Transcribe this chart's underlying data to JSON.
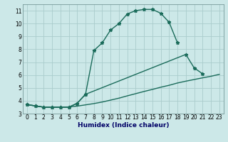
{
  "xlabel": "Humidex (Indice chaleur)",
  "bg_color": "#cce8e8",
  "grid_color": "#aacccc",
  "line_color": "#1a6b5a",
  "xlim": [
    -0.5,
    23.5
  ],
  "ylim": [
    3,
    11.5
  ],
  "xticks": [
    0,
    1,
    2,
    3,
    4,
    5,
    6,
    7,
    8,
    9,
    10,
    11,
    12,
    13,
    14,
    15,
    16,
    17,
    18,
    19,
    20,
    21,
    22,
    23
  ],
  "yticks": [
    3,
    4,
    5,
    6,
    7,
    8,
    9,
    10,
    11
  ],
  "line1_x": [
    0,
    1,
    2,
    3,
    4,
    5,
    6,
    7,
    8,
    9,
    10,
    11,
    12,
    13,
    14,
    15,
    16,
    17,
    18
  ],
  "line1_y": [
    3.7,
    3.6,
    3.5,
    3.5,
    3.5,
    3.5,
    3.8,
    4.5,
    7.9,
    8.5,
    9.5,
    10.0,
    10.75,
    11.0,
    11.1,
    11.1,
    10.8,
    10.1,
    8.5
  ],
  "line2_x": [
    0,
    1,
    2,
    3,
    4,
    5,
    6,
    7,
    19,
    20,
    21
  ],
  "line2_y": [
    3.7,
    3.6,
    3.5,
    3.5,
    3.5,
    3.5,
    3.8,
    4.5,
    7.6,
    6.55,
    6.1
  ],
  "line3_x": [
    0,
    1,
    2,
    3,
    4,
    5,
    6,
    7,
    8,
    9,
    10,
    11,
    12,
    13,
    14,
    15,
    16,
    17,
    18,
    19,
    20,
    21,
    22,
    23
  ],
  "line3_y": [
    3.7,
    3.6,
    3.5,
    3.5,
    3.5,
    3.52,
    3.58,
    3.68,
    3.78,
    3.9,
    4.05,
    4.2,
    4.38,
    4.55,
    4.72,
    4.88,
    5.05,
    5.2,
    5.38,
    5.52,
    5.65,
    5.78,
    5.9,
    6.05
  ],
  "xlabel_color": "#000066",
  "xlabel_fontsize": 6.5,
  "tick_fontsize": 5.5,
  "linewidth": 1.0,
  "markersize": 3.5
}
